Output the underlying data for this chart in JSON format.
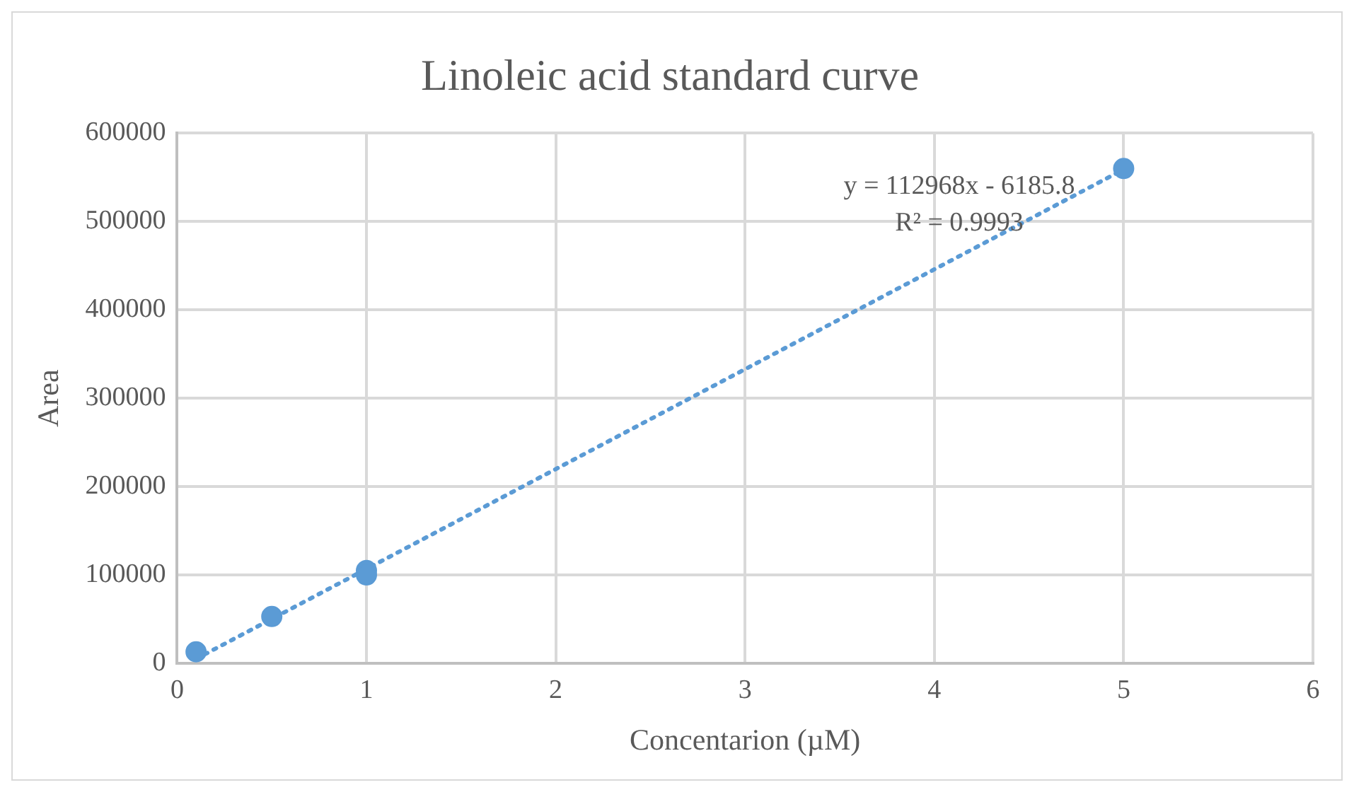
{
  "chart_data": {
    "type": "scatter",
    "title": "Linoleic acid standard curve",
    "xlabel": "Concentarion (µM)",
    "ylabel": "Area",
    "series": [
      {
        "color": "#5b9bd5",
        "x": [
          0.1,
          0.5,
          1,
          1,
          5
        ],
        "values": [
          13000,
          53000,
          105000,
          100000,
          560000
        ],
        "marker": "circle"
      },
      {
        "type": "line",
        "color": "#5b9bd5",
        "x": [
          0.1,
          5
        ],
        "values": [
          5000,
          559000
        ],
        "marker": "none",
        "line_style": "dotted"
      }
    ],
    "xlim": [
      0,
      6
    ],
    "xticks": [
      0,
      1,
      2,
      3,
      4,
      5,
      6
    ],
    "ylim": [
      0,
      600000
    ],
    "yticks": [
      0,
      100000,
      200000,
      300000,
      400000,
      500000,
      600000
    ],
    "grid": true,
    "legend": false,
    "annotations": [
      "y = 112968x - 6185.8",
      "R² = 0.9993"
    ]
  }
}
